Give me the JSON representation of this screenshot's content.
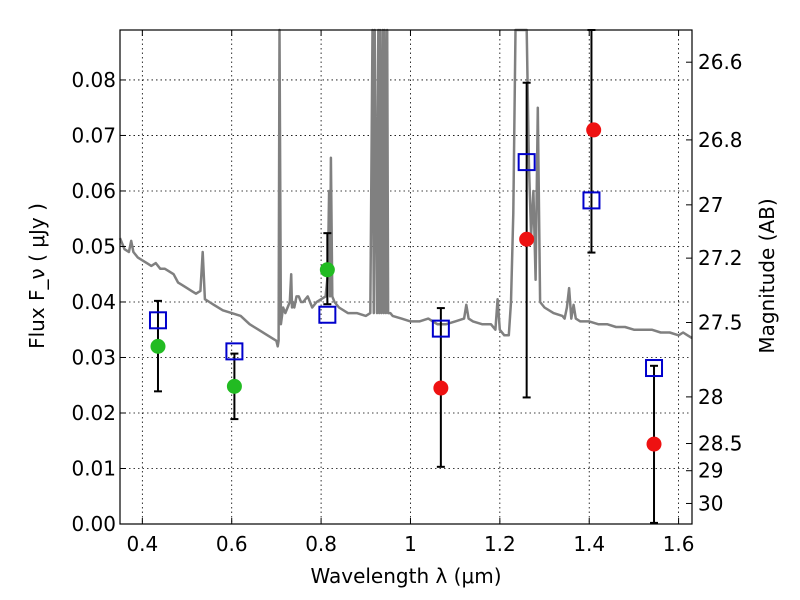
{
  "chart_data": {
    "type": "scatter",
    "xlabel": "Wavelength  λ (μm)",
    "ylabel": "Flux  F_ν  ( μJy )",
    "y2label": "Magnitude (AB)",
    "xlim": [
      0.35,
      1.63
    ],
    "ylim": [
      0.0,
      0.089
    ],
    "xticks": [
      0.4,
      0.6,
      0.8,
      1.0,
      1.2,
      1.4,
      1.6
    ],
    "xtick_labels": [
      "0.4",
      "0.6",
      "0.8",
      "1",
      "1.2",
      "1.4",
      "1.6"
    ],
    "yticks": [
      0.0,
      0.01,
      0.02,
      0.03,
      0.04,
      0.05,
      0.06,
      0.07,
      0.08
    ],
    "ytick_labels": [
      "0.00",
      "0.01",
      "0.02",
      "0.03",
      "0.04",
      "0.05",
      "0.06",
      "0.07",
      "0.08"
    ],
    "y2_ticks": [
      {
        "label": "26.6",
        "flux": 0.0832
      },
      {
        "label": "26.8",
        "flux": 0.0692
      },
      {
        "label": "27",
        "flux": 0.0575
      },
      {
        "label": "27.2",
        "flux": 0.0479
      },
      {
        "label": "27.5",
        "flux": 0.0363
      },
      {
        "label": "28",
        "flux": 0.0229
      },
      {
        "label": "28.5",
        "flux": 0.0145
      },
      {
        "label": "29",
        "flux": 0.0096
      },
      {
        "label": "30",
        "flux": 0.0037
      }
    ],
    "grid": true,
    "grid_style": "dotted",
    "colors": {
      "sed": "#808080",
      "green": "#22bb22",
      "red": "#ee1111",
      "blue": "#0000cc",
      "errorbar": "#000000"
    },
    "series": [
      {
        "marker": "circle-green",
        "x": [
          0.435,
          0.606,
          0.814
        ],
        "y": [
          0.032,
          0.0248,
          0.0458
        ]
      },
      {
        "marker": "circle-red",
        "x": [
          1.068,
          1.26,
          1.41,
          1.545
        ],
        "y": [
          0.0245,
          0.0513,
          0.071,
          0.0144
        ]
      },
      {
        "marker": "open-square-blue",
        "x": [
          0.435,
          0.606,
          0.814,
          1.068,
          1.26,
          1.405,
          1.545
        ],
        "y": [
          0.0367,
          0.0311,
          0.0377,
          0.0352,
          0.0652,
          0.0583,
          0.0281
        ]
      }
    ],
    "errorbars": [
      {
        "x": 0.435,
        "low": 0.0239,
        "high": 0.0402
      },
      {
        "x": 0.606,
        "low": 0.0189,
        "high": 0.0307
      },
      {
        "x": 0.814,
        "low": 0.0396,
        "high": 0.0524
      },
      {
        "x": 1.068,
        "low": 0.0103,
        "high": 0.0389
      },
      {
        "x": 1.26,
        "low": 0.0228,
        "high": 0.0795
      },
      {
        "x": 1.405,
        "low": 0.0489,
        "high": 0.089
      },
      {
        "x": 1.545,
        "low": 0.0002,
        "high": 0.0285
      }
    ],
    "sed_line": {
      "x": [
        0.35,
        0.36,
        0.37,
        0.375,
        0.38,
        0.39,
        0.4,
        0.41,
        0.42,
        0.43,
        0.44,
        0.45,
        0.46,
        0.47,
        0.48,
        0.49,
        0.5,
        0.51,
        0.52,
        0.53,
        0.535,
        0.54,
        0.55,
        0.56,
        0.58,
        0.6,
        0.62,
        0.64,
        0.66,
        0.68,
        0.7,
        0.703,
        0.705,
        0.707,
        0.71,
        0.715,
        0.72,
        0.725,
        0.73,
        0.733,
        0.735,
        0.737,
        0.74,
        0.745,
        0.75,
        0.755,
        0.76,
        0.77,
        0.78,
        0.79,
        0.8,
        0.81,
        0.815,
        0.818,
        0.82,
        0.822,
        0.825,
        0.83,
        0.84,
        0.86,
        0.88,
        0.9,
        0.91,
        0.915,
        0.918,
        0.92,
        0.925,
        0.928,
        0.93,
        0.932,
        0.935,
        0.938,
        0.94,
        0.942,
        0.945,
        0.948,
        0.95,
        0.955,
        0.96,
        0.98,
        1.0,
        1.02,
        1.04,
        1.06,
        1.08,
        1.1,
        1.12,
        1.125,
        1.13,
        1.14,
        1.16,
        1.18,
        1.19,
        1.195,
        1.2,
        1.21,
        1.22,
        1.225,
        1.23,
        1.235,
        1.24,
        1.245,
        1.25,
        1.26,
        1.265,
        1.27,
        1.275,
        1.28,
        1.285,
        1.29,
        1.3,
        1.32,
        1.34,
        1.345,
        1.35,
        1.355,
        1.36,
        1.365,
        1.37,
        1.38,
        1.4,
        1.42,
        1.44,
        1.46,
        1.48,
        1.5,
        1.52,
        1.54,
        1.56,
        1.58,
        1.6,
        1.61,
        1.62,
        1.63
      ],
      "y": [
        0.0515,
        0.0495,
        0.049,
        0.051,
        0.049,
        0.048,
        0.0475,
        0.047,
        0.0465,
        0.047,
        0.046,
        0.046,
        0.0455,
        0.045,
        0.0435,
        0.043,
        0.0425,
        0.042,
        0.0415,
        0.042,
        0.049,
        0.0405,
        0.04,
        0.0395,
        0.0385,
        0.038,
        0.0375,
        0.036,
        0.035,
        0.034,
        0.033,
        0.032,
        0.033,
        0.089,
        0.036,
        0.039,
        0.038,
        0.039,
        0.04,
        0.045,
        0.039,
        0.04,
        0.039,
        0.041,
        0.041,
        0.04,
        0.04,
        0.041,
        0.039,
        0.04,
        0.0405,
        0.041,
        0.045,
        0.06,
        0.041,
        0.066,
        0.041,
        0.04,
        0.039,
        0.038,
        0.038,
        0.0375,
        0.038,
        0.089,
        0.038,
        0.089,
        0.038,
        0.089,
        0.038,
        0.089,
        0.038,
        0.089,
        0.038,
        0.089,
        0.038,
        0.089,
        0.038,
        0.038,
        0.0375,
        0.037,
        0.0365,
        0.0365,
        0.037,
        0.036,
        0.036,
        0.0365,
        0.037,
        0.0395,
        0.037,
        0.0365,
        0.036,
        0.036,
        0.035,
        0.0405,
        0.035,
        0.034,
        0.034,
        0.04,
        0.056,
        0.089,
        0.089,
        0.089,
        0.089,
        0.089,
        0.065,
        0.052,
        0.06,
        0.044,
        0.075,
        0.04,
        0.039,
        0.038,
        0.0375,
        0.037,
        0.039,
        0.0425,
        0.037,
        0.0395,
        0.037,
        0.0365,
        0.0365,
        0.036,
        0.036,
        0.0355,
        0.0355,
        0.035,
        0.035,
        0.035,
        0.0345,
        0.0345,
        0.034,
        0.0345,
        0.034,
        0.0335
      ]
    }
  }
}
